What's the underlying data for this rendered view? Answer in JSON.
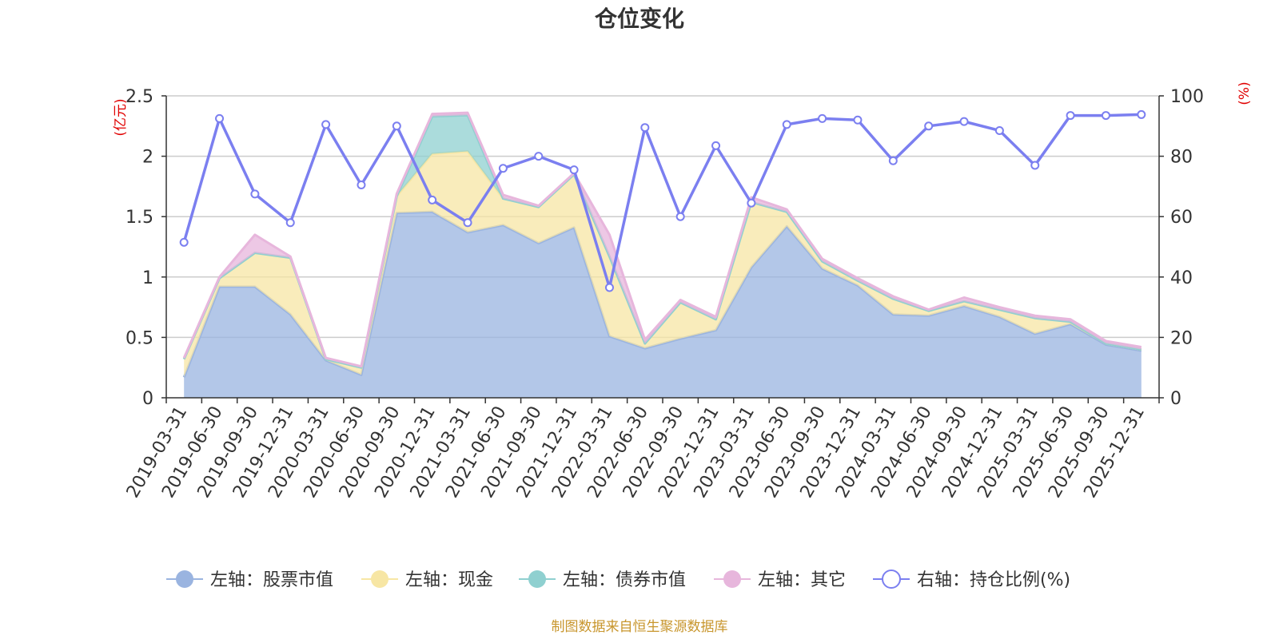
{
  "chart_data": {
    "type": "area",
    "title": "仓位变化",
    "left_axis_unit": "(亿元)",
    "right_axis_unit": "(%)",
    "ylim_left": [
      0,
      2.5
    ],
    "yticks_left": [
      "0",
      "0.5",
      "1",
      "1.5",
      "2",
      "2.5"
    ],
    "ylim_right": [
      0,
      100
    ],
    "yticks_right": [
      "0",
      "20",
      "40",
      "60",
      "80",
      "100"
    ],
    "stacked": true,
    "grid": true,
    "legend_position": "bottom",
    "x": [
      "2019-03-31",
      "2019-06-30",
      "2019-09-30",
      "2019-12-31",
      "2020-03-31",
      "2020-06-30",
      "2020-09-30",
      "2020-12-31",
      "2021-03-31",
      "2021-06-30",
      "2021-09-30",
      "2021-12-31",
      "2022-03-31",
      "2022-06-30",
      "2022-09-30",
      "2022-12-31",
      "2023-03-31",
      "2023-06-30",
      "2023-09-30",
      "2023-12-31",
      "2024-03-31",
      "2024-06-30",
      "2024-09-30",
      "2024-12-31",
      "2025-03-31",
      "2025-06-30",
      "2025-09-30",
      "2025-12-31"
    ],
    "series": [
      {
        "name": "左轴：股票市值",
        "axis": "left",
        "color": "#9ab4e0",
        "values": [
          0.17,
          0.92,
          0.92,
          0.69,
          0.31,
          0.19,
          1.53,
          1.54,
          1.37,
          1.43,
          1.28,
          1.41,
          0.51,
          0.41,
          0.49,
          0.56,
          1.08,
          1.42,
          1.07,
          0.93,
          0.69,
          0.68,
          0.76,
          0.67,
          0.53,
          0.61,
          0.44,
          0.39
        ]
      },
      {
        "name": "左轴：现金",
        "axis": "left",
        "color": "#f7e6a4",
        "values": [
          0.15,
          0.07,
          0.28,
          0.47,
          0.01,
          0.06,
          0.14,
          0.48,
          0.67,
          0.22,
          0.3,
          0.44,
          0.66,
          0.04,
          0.3,
          0.09,
          0.54,
          0.12,
          0.06,
          0.04,
          0.13,
          0.04,
          0.04,
          0.06,
          0.13,
          0.02,
          0.01,
          0.01
        ]
      },
      {
        "name": "左轴：债券市值",
        "axis": "left",
        "color": "#8fd0d0",
        "values": [
          0,
          0,
          0,
          0,
          0,
          0,
          0,
          0.31,
          0.3,
          0,
          0,
          0,
          0,
          0,
          0,
          0,
          0,
          0,
          0,
          0,
          0,
          0,
          0,
          0,
          0,
          0,
          0,
          0
        ]
      },
      {
        "name": "左轴：其它",
        "axis": "left",
        "color": "#e7b6dc",
        "values": [
          0.01,
          0.01,
          0.15,
          0.01,
          0.01,
          0.01,
          0.02,
          0.02,
          0.02,
          0.03,
          0.01,
          0.01,
          0.18,
          0.03,
          0.02,
          0.02,
          0.04,
          0.02,
          0.02,
          0.02,
          0.02,
          0.01,
          0.03,
          0.02,
          0.02,
          0.02,
          0.02,
          0.02
        ]
      },
      {
        "name": "右轴：持仓比例(%)",
        "axis": "right",
        "color": "#7b7ff0",
        "values": [
          51.5,
          92.5,
          67.5,
          58,
          90.5,
          70.5,
          90,
          65.5,
          58,
          76,
          80,
          75.5,
          36.5,
          89.5,
          60,
          83.5,
          64.5,
          90.5,
          92.5,
          92,
          78.5,
          90,
          91.5,
          88.5,
          77,
          93.5,
          93.5,
          93.8
        ]
      }
    ]
  },
  "source_note": "制图数据来自恒生聚源数据库"
}
